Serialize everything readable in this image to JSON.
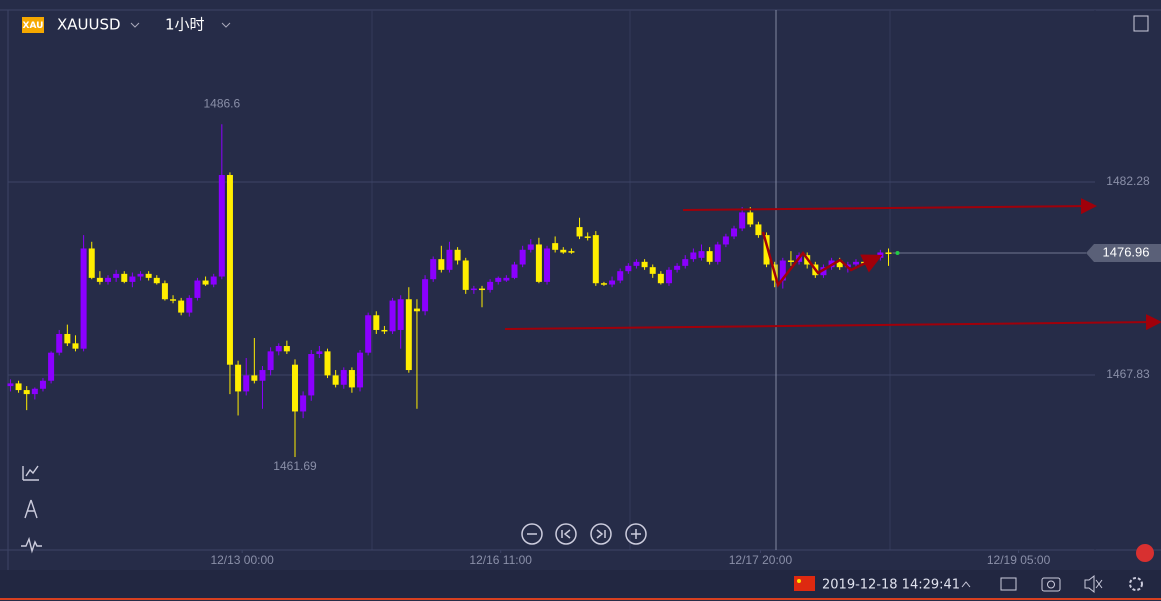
{
  "header": {
    "badge": "XAU",
    "symbol": "XAUUSD",
    "interval": "1小时"
  },
  "footer": {
    "datetime": "2019-12-18 14:29:41"
  },
  "chart_data": {
    "type": "candlestick",
    "up_color": "#8b00ff",
    "down_color": "#ffee00",
    "x": [
      0,
      1,
      2,
      3,
      4,
      5,
      6,
      7,
      8,
      9,
      10,
      11,
      12,
      13,
      14,
      15,
      16,
      17,
      18,
      19,
      20,
      21,
      22,
      23,
      24,
      25,
      26,
      27,
      28,
      29,
      30,
      31,
      32,
      33,
      34,
      35,
      36,
      37,
      38,
      39,
      40,
      41,
      42,
      43,
      44,
      45,
      46,
      47,
      48,
      49,
      50,
      51,
      52,
      53,
      54,
      55,
      56,
      57,
      58,
      59,
      60,
      61,
      62,
      63,
      64,
      65,
      66,
      67,
      68,
      69,
      70,
      71,
      72,
      73,
      74,
      75,
      76,
      77,
      78,
      79,
      80,
      81,
      82,
      83,
      84,
      85,
      86,
      87,
      88,
      89,
      90,
      91,
      92,
      93,
      94,
      95,
      96,
      97,
      98,
      99,
      100,
      101,
      102,
      103,
      104,
      105,
      106,
      107,
      108
    ],
    "open": [
      1467.0,
      1467.2,
      1466.7,
      1466.4,
      1466.8,
      1467.4,
      1469.5,
      1470.9,
      1470.2,
      1469.8,
      1477.3,
      1475.1,
      1474.8,
      1475.1,
      1475.4,
      1474.8,
      1475.2,
      1475.4,
      1475.1,
      1474.7,
      1473.5,
      1473.4,
      1472.5,
      1473.6,
      1474.9,
      1474.6,
      1475.2,
      1482.8,
      1468.6,
      1466.6,
      1467.8,
      1467.4,
      1468.2,
      1469.6,
      1470.0,
      1468.6,
      1465.1,
      1466.3,
      1469.4,
      1469.6,
      1467.8,
      1467.1,
      1468.2,
      1466.9,
      1469.5,
      1472.3,
      1471.2,
      1471.1,
      1471.2,
      1473.5,
      1472.8,
      1472.6,
      1475.0,
      1476.5,
      1475.7,
      1477.2,
      1476.4,
      1474.2,
      1474.3,
      1474.2,
      1474.8,
      1474.9,
      1475.1,
      1476.1,
      1477.2,
      1477.6,
      1474.8,
      1477.7,
      1477.2,
      1477.1,
      1478.9,
      1478.2,
      1478.3,
      1474.7,
      1474.6,
      1474.9,
      1475.6,
      1476.0,
      1476.3,
      1475.9,
      1475.4,
      1474.7,
      1475.7,
      1476.0,
      1476.5,
      1476.6,
      1477.1,
      1476.3,
      1477.6,
      1478.2,
      1478.8,
      1480.0,
      1479.1,
      1478.3,
      1476.1,
      1474.9,
      1476.4,
      1476.3,
      1476.8,
      1476.1,
      1475.3,
      1475.9,
      1476.4,
      1475.9,
      1476.1,
      1476.3,
      1476.2,
      1476.6,
      1477.0
    ],
    "high": [
      1467.5,
      1467.4,
      1467.0,
      1466.9,
      1467.6,
      1469.6,
      1471.2,
      1471.6,
      1470.8,
      1478.3,
      1477.8,
      1475.6,
      1475.3,
      1475.7,
      1475.6,
      1475.5,
      1475.6,
      1475.6,
      1475.3,
      1474.9,
      1473.8,
      1473.6,
      1473.8,
      1475.1,
      1475.2,
      1475.4,
      1486.6,
      1483.0,
      1468.9,
      1469.1,
      1470.6,
      1468.5,
      1469.9,
      1470.2,
      1470.4,
      1469.0,
      1466.6,
      1469.7,
      1470.0,
      1469.8,
      1468.2,
      1468.4,
      1468.4,
      1469.7,
      1472.5,
      1472.6,
      1471.5,
      1473.6,
      1473.8,
      1474.4,
      1473.5,
      1475.3,
      1476.7,
      1477.5,
      1477.8,
      1477.4,
      1476.6,
      1474.5,
      1474.5,
      1475.0,
      1475.2,
      1475.3,
      1476.3,
      1477.5,
      1478.0,
      1478.1,
      1477.5,
      1478.2,
      1477.4,
      1477.3,
      1479.6,
      1478.5,
      1478.6,
      1474.8,
      1475.2,
      1475.8,
      1476.2,
      1476.5,
      1476.5,
      1476.1,
      1475.6,
      1475.9,
      1476.2,
      1476.8,
      1477.3,
      1477.6,
      1477.4,
      1477.8,
      1478.4,
      1479.0,
      1480.4,
      1480.4,
      1479.3,
      1478.5,
      1476.3,
      1476.6,
      1477.1,
      1477.0,
      1477.0,
      1476.3,
      1476.1,
      1476.6,
      1476.6,
      1476.3,
      1476.5,
      1476.4,
      1476.7,
      1477.2,
      1477.3
    ],
    "low": [
      1466.6,
      1466.5,
      1465.2,
      1466.0,
      1466.6,
      1467.2,
      1469.3,
      1470.0,
      1469.6,
      1469.6,
      1475.0,
      1474.6,
      1474.6,
      1474.8,
      1474.7,
      1474.4,
      1474.9,
      1474.9,
      1474.6,
      1473.4,
      1473.2,
      1472.3,
      1472.2,
      1473.4,
      1474.5,
      1474.4,
      1475.0,
      1466.4,
      1464.8,
      1466.3,
      1467.2,
      1465.3,
      1467.8,
      1469.3,
      1469.4,
      1461.69,
      1464.6,
      1465.9,
      1469.1,
      1467.6,
      1466.9,
      1466.8,
      1466.5,
      1466.6,
      1469.3,
      1470.9,
      1470.9,
      1470.9,
      1469.8,
      1468.0,
      1465.3,
      1472.3,
      1474.8,
      1475.5,
      1475.5,
      1476.1,
      1473.9,
      1473.9,
      1472.9,
      1474.0,
      1474.6,
      1474.8,
      1475.0,
      1475.9,
      1477.0,
      1474.7,
      1474.6,
      1477.0,
      1476.9,
      1476.9,
      1478.0,
      1477.9,
      1474.5,
      1474.5,
      1474.4,
      1474.7,
      1475.4,
      1475.8,
      1475.7,
      1475.1,
      1474.6,
      1474.5,
      1475.5,
      1475.8,
      1476.3,
      1476.4,
      1476.1,
      1476.1,
      1477.4,
      1478.0,
      1478.6,
      1478.9,
      1478.1,
      1475.9,
      1474.4,
      1474.3,
      1476.0,
      1476.1,
      1475.8,
      1475.1,
      1475.1,
      1475.7,
      1475.7,
      1475.5,
      1475.9,
      1476.1,
      1476.0,
      1476.4,
      1476.0
    ],
    "close": [
      1467.2,
      1466.7,
      1466.4,
      1466.8,
      1467.4,
      1469.5,
      1470.9,
      1470.2,
      1469.8,
      1477.3,
      1475.1,
      1474.8,
      1475.1,
      1475.4,
      1474.8,
      1475.2,
      1475.4,
      1475.1,
      1474.7,
      1473.5,
      1473.4,
      1472.5,
      1473.6,
      1474.9,
      1474.6,
      1475.2,
      1482.8,
      1468.6,
      1466.6,
      1467.8,
      1467.4,
      1468.2,
      1469.6,
      1470.0,
      1469.6,
      1465.1,
      1466.3,
      1469.4,
      1469.6,
      1467.8,
      1467.1,
      1468.2,
      1466.9,
      1469.5,
      1472.3,
      1471.2,
      1471.1,
      1473.4,
      1473.5,
      1468.2,
      1472.6,
      1475.0,
      1476.5,
      1475.7,
      1477.2,
      1476.4,
      1474.2,
      1474.3,
      1474.2,
      1474.8,
      1475.1,
      1475.1,
      1476.1,
      1477.2,
      1477.6,
      1474.8,
      1477.3,
      1477.2,
      1477.0,
      1477.0,
      1478.2,
      1478.1,
      1474.7,
      1474.6,
      1474.9,
      1475.6,
      1476.0,
      1476.3,
      1475.9,
      1475.4,
      1474.7,
      1475.7,
      1476.0,
      1476.5,
      1477.0,
      1477.1,
      1476.3,
      1477.6,
      1478.2,
      1478.8,
      1480.0,
      1479.1,
      1478.3,
      1476.1,
      1474.9,
      1476.4,
      1476.3,
      1476.8,
      1476.1,
      1475.3,
      1475.9,
      1476.4,
      1475.9,
      1476.1,
      1476.3,
      1476.2,
      1476.6,
      1477.0,
      1476.96
    ],
    "xlim": [
      -0.3,
      133.4
    ],
    "xticks": [
      {
        "value": 28.5,
        "label": "12/13 00:00"
      },
      {
        "value": 60.3,
        "label": "12/16 11:00"
      },
      {
        "value": 92.25,
        "label": "12/17 20:00"
      },
      {
        "value": 124.0,
        "label": "12/19 05:00"
      }
    ],
    "ylim": [
      1454.73,
      1495.15
    ],
    "yticks": [
      1482.28,
      1467.83
    ],
    "grid": true
  }
}
